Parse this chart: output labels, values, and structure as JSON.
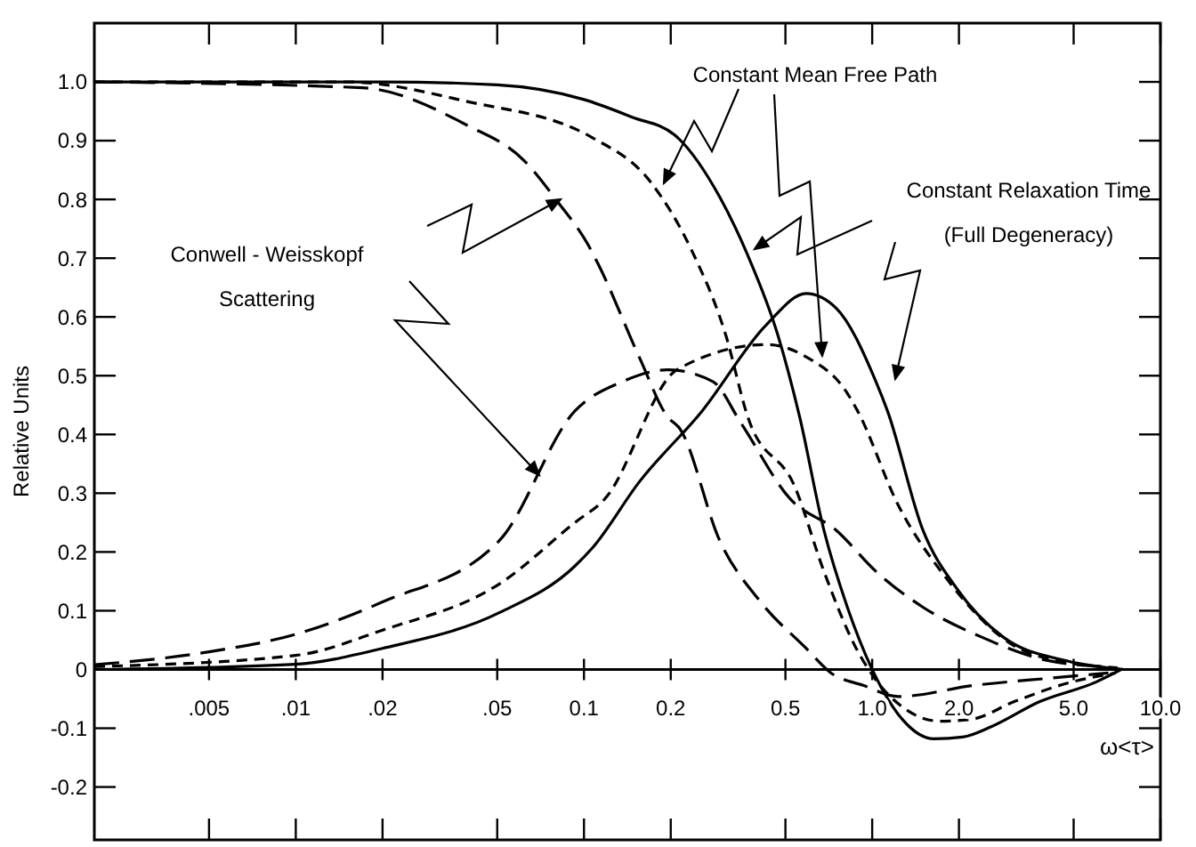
{
  "chart_data": {
    "type": "line",
    "xlabel": "ω<τ>",
    "ylabel": "Relative Units",
    "log": "x",
    "grid": false,
    "xlim": [
      0.002,
      10
    ],
    "ylim": [
      -0.29,
      1.1
    ],
    "xticks": [
      {
        "value": 0.005,
        "label": ".005"
      },
      {
        "value": 0.01,
        "label": ".01"
      },
      {
        "value": 0.02,
        "label": ".02"
      },
      {
        "value": 0.05,
        "label": ".05"
      },
      0.1,
      0.2,
      0.5,
      {
        "value": 1,
        "label": "1.0"
      },
      {
        "value": 2,
        "label": "2.0"
      },
      {
        "value": 5,
        "label": "5.0"
      },
      {
        "value": 10,
        "label": "10.0"
      }
    ],
    "yticks": [
      {
        "value": 1,
        "label": "1.0"
      },
      0.9,
      0.8,
      0.7,
      0.6,
      0.5,
      0.4,
      0.3,
      0.2,
      0.1,
      0,
      -0.1,
      -0.2
    ],
    "annotations": [
      "Constant Mean Free Path",
      "Constant Relaxation Time\n(Full Degeneracy)",
      "Conwell - Weisskopf\nScattering"
    ],
    "series": [
      {
        "color": "#000000",
        "line_style": "solid",
        "x": [
          0.002,
          0.02,
          0.05,
          0.1,
          0.147,
          0.206,
          0.295,
          0.37,
          0.47,
          0.56,
          0.68,
          0.82,
          1.0,
          1.23,
          1.64,
          2.06,
          2.6,
          3.8,
          6.0,
          7.3
        ],
        "values": [
          1.0,
          1.0,
          0.995,
          0.97,
          0.94,
          0.91,
          0.805,
          0.705,
          0.57,
          0.43,
          0.237,
          0.106,
          0,
          -0.076,
          -0.118,
          -0.115,
          -0.097,
          -0.055,
          -0.021,
          0
        ]
      },
      {
        "color": "#000000",
        "line_style": "solid",
        "x": [
          0.002,
          0.01,
          0.02,
          0.051,
          0.093,
          0.107,
          0.156,
          0.257,
          0.43,
          0.59,
          0.75,
          1.03,
          1.13,
          1.5,
          1.97,
          2.85,
          4.7,
          7.5
        ],
        "values": [
          0,
          0.009,
          0.036,
          0.097,
          0.176,
          0.207,
          0.32,
          0.44,
          0.587,
          0.64,
          0.615,
          0.49,
          0.44,
          0.237,
          0.137,
          0.055,
          0.015,
          0
        ]
      },
      {
        "color": "#000000",
        "line_style": "dashed",
        "x": [
          0.002,
          0.015,
          0.039,
          0.107,
          0.17,
          0.236,
          0.31,
          0.37,
          0.54,
          0.68,
          0.88,
          1.02,
          1.3,
          1.72,
          2.2,
          3.1,
          4.7,
          7.0
        ],
        "values": [
          1.0,
          1.0,
          0.967,
          0.905,
          0.83,
          0.714,
          0.57,
          0.43,
          0.31,
          0.167,
          0.036,
          -0.015,
          -0.067,
          -0.088,
          -0.085,
          -0.055,
          -0.024,
          -0.006
        ]
      },
      {
        "color": "#000000",
        "line_style": "dashed",
        "x": [
          0.002,
          0.01,
          0.02,
          0.051,
          0.093,
          0.118,
          0.21,
          0.43,
          0.59,
          0.82,
          0.89,
          1.23,
          1.79,
          2.98,
          4.7,
          7.1
        ],
        "values": [
          0.005,
          0.024,
          0.067,
          0.146,
          0.25,
          0.29,
          0.51,
          0.553,
          0.532,
          0.47,
          0.44,
          0.28,
          0.158,
          0.046,
          0.012,
          0.003
        ]
      },
      {
        "color": "#000000",
        "line_style": "longdash",
        "x": [
          0.002,
          0.017,
          0.039,
          0.062,
          0.081,
          0.103,
          0.112,
          0.156,
          0.195,
          0.215,
          0.296,
          0.41,
          0.59,
          0.72,
          0.93,
          1.23,
          2.26,
          4.1,
          6.6
        ],
        "values": [
          1.0,
          0.99,
          0.927,
          0.866,
          0.796,
          0.724,
          0.69,
          0.53,
          0.43,
          0.41,
          0.219,
          0.115,
          0.036,
          -0.006,
          -0.027,
          -0.046,
          -0.027,
          -0.015,
          -0.006
        ]
      },
      {
        "color": "#000000",
        "line_style": "longdash",
        "x": [
          0.002,
          0.005,
          0.01,
          0.02,
          0.051,
          0.093,
          0.136,
          0.195,
          0.28,
          0.35,
          0.52,
          0.75,
          1.03,
          1.5,
          2.4,
          4.1,
          6.8
        ],
        "values": [
          0.008,
          0.03,
          0.06,
          0.115,
          0.22,
          0.44,
          0.49,
          0.51,
          0.49,
          0.42,
          0.29,
          0.237,
          0.167,
          0.106,
          0.055,
          0.015,
          0.004
        ]
      }
    ]
  }
}
